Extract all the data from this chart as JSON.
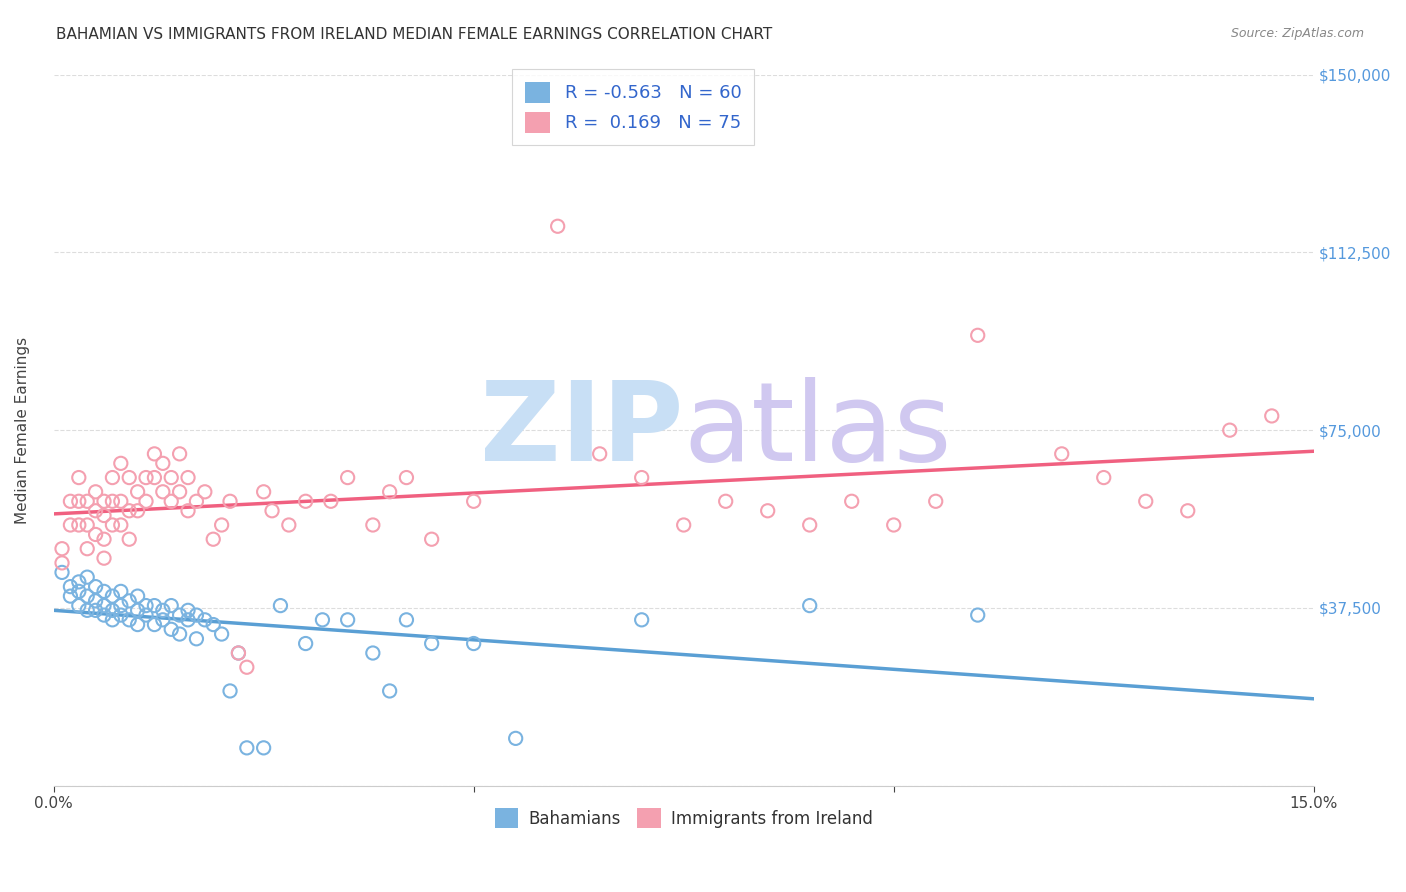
{
  "title": "BAHAMIAN VS IMMIGRANTS FROM IRELAND MEDIAN FEMALE EARNINGS CORRELATION CHART",
  "source": "Source: ZipAtlas.com",
  "ylabel": "Median Female Earnings",
  "xlim": [
    0.0,
    0.15
  ],
  "ylim": [
    0,
    150000
  ],
  "yticks": [
    0,
    37500,
    75000,
    112500,
    150000
  ],
  "ytick_labels": [
    "",
    "$37,500",
    "$75,000",
    "$112,500",
    "$150,000"
  ],
  "xticks": [
    0.0,
    0.05,
    0.1,
    0.15
  ],
  "xtick_labels": [
    "0.0%",
    "",
    "",
    "15.0%"
  ],
  "bahamian_R": -0.563,
  "bahamian_N": 60,
  "ireland_R": 0.169,
  "ireland_N": 75,
  "blue_color": "#7ab3e0",
  "pink_color": "#f4a0b0",
  "blue_line_color": "#5a9fd4",
  "pink_line_color": "#f06080",
  "grid_color": "#dddddd",
  "title_color": "#333333",
  "watermark_zip_color": "#c8dff5",
  "watermark_atlas_color": "#d0c8f0",
  "right_label_color": "#5599dd",
  "legend_text_color": "#333333",
  "legend_num_color": "#3366cc",
  "bahamian_x": [
    0.001,
    0.002,
    0.002,
    0.003,
    0.003,
    0.003,
    0.004,
    0.004,
    0.004,
    0.005,
    0.005,
    0.005,
    0.006,
    0.006,
    0.006,
    0.007,
    0.007,
    0.007,
    0.008,
    0.008,
    0.008,
    0.009,
    0.009,
    0.01,
    0.01,
    0.01,
    0.011,
    0.011,
    0.012,
    0.012,
    0.013,
    0.013,
    0.014,
    0.014,
    0.015,
    0.015,
    0.016,
    0.016,
    0.017,
    0.017,
    0.018,
    0.019,
    0.02,
    0.021,
    0.022,
    0.023,
    0.025,
    0.027,
    0.03,
    0.032,
    0.035,
    0.038,
    0.04,
    0.042,
    0.045,
    0.05,
    0.055,
    0.07,
    0.09,
    0.11
  ],
  "bahamian_y": [
    45000,
    42000,
    40000,
    43000,
    41000,
    38000,
    44000,
    40000,
    37000,
    42000,
    39000,
    37000,
    41000,
    38000,
    36000,
    40000,
    37000,
    35000,
    41000,
    38000,
    36000,
    39000,
    35000,
    40000,
    37000,
    34000,
    38000,
    36000,
    38000,
    34000,
    37000,
    35000,
    38000,
    33000,
    36000,
    32000,
    37000,
    35000,
    36000,
    31000,
    35000,
    34000,
    32000,
    20000,
    28000,
    8000,
    8000,
    38000,
    30000,
    35000,
    35000,
    28000,
    20000,
    35000,
    30000,
    30000,
    10000,
    35000,
    38000,
    36000
  ],
  "ireland_x": [
    0.001,
    0.001,
    0.002,
    0.002,
    0.003,
    0.003,
    0.003,
    0.004,
    0.004,
    0.004,
    0.005,
    0.005,
    0.005,
    0.006,
    0.006,
    0.006,
    0.006,
    0.007,
    0.007,
    0.007,
    0.008,
    0.008,
    0.008,
    0.009,
    0.009,
    0.009,
    0.01,
    0.01,
    0.011,
    0.011,
    0.012,
    0.012,
    0.013,
    0.013,
    0.014,
    0.014,
    0.015,
    0.015,
    0.016,
    0.016,
    0.017,
    0.018,
    0.019,
    0.02,
    0.021,
    0.022,
    0.023,
    0.025,
    0.026,
    0.028,
    0.03,
    0.033,
    0.035,
    0.038,
    0.04,
    0.042,
    0.045,
    0.05,
    0.06,
    0.065,
    0.07,
    0.075,
    0.08,
    0.085,
    0.09,
    0.095,
    0.1,
    0.105,
    0.11,
    0.12,
    0.125,
    0.13,
    0.135,
    0.14,
    0.145
  ],
  "ireland_y": [
    50000,
    47000,
    60000,
    55000,
    65000,
    60000,
    55000,
    60000,
    55000,
    50000,
    62000,
    58000,
    53000,
    60000,
    57000,
    52000,
    48000,
    65000,
    60000,
    55000,
    68000,
    60000,
    55000,
    65000,
    58000,
    52000,
    62000,
    58000,
    65000,
    60000,
    70000,
    65000,
    68000,
    62000,
    65000,
    60000,
    70000,
    62000,
    65000,
    58000,
    60000,
    62000,
    52000,
    55000,
    60000,
    28000,
    25000,
    62000,
    58000,
    55000,
    60000,
    60000,
    65000,
    55000,
    62000,
    65000,
    52000,
    60000,
    118000,
    70000,
    65000,
    55000,
    60000,
    58000,
    55000,
    60000,
    55000,
    60000,
    95000,
    70000,
    65000,
    60000,
    58000,
    75000,
    78000
  ]
}
